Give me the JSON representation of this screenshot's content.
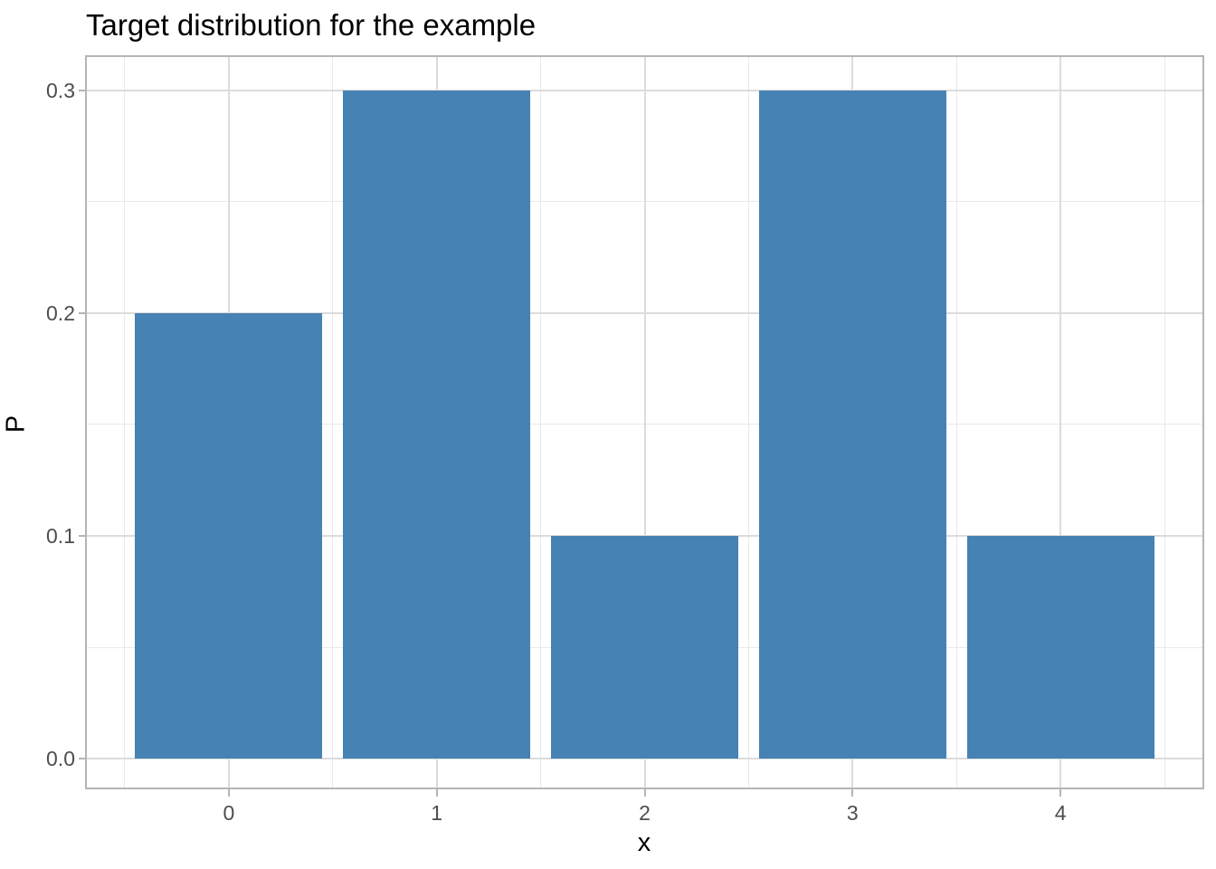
{
  "chart_data": {
    "type": "bar",
    "title": "Target distribution for the example",
    "xlabel": "x",
    "ylabel": "P",
    "categories": [
      0,
      1,
      2,
      3,
      4
    ],
    "values": [
      0.2,
      0.3,
      0.1,
      0.3,
      0.1
    ],
    "bar_width": 0.9,
    "x_tick_labels": [
      "0",
      "1",
      "2",
      "3",
      "4"
    ],
    "y_ticks": [
      0.0,
      0.1,
      0.2,
      0.3
    ],
    "y_tick_labels": [
      "0.0",
      "0.1",
      "0.2",
      "0.3"
    ],
    "x_minor_ticks": [
      -0.5,
      0.5,
      1.5,
      2.5,
      3.5,
      4.5
    ],
    "y_minor_ticks": [
      0.05,
      0.15,
      0.25
    ],
    "xlim": [
      -0.687,
      4.687
    ],
    "ylim": [
      -0.0134,
      0.3154
    ],
    "grid": true,
    "legend_position": "none",
    "colors": {
      "bar": "#4682B4",
      "grid_major": "#dcdcdc",
      "grid_minor": "#e9e9e9",
      "panel_border": "#b5b5b5",
      "tick_mark": "#b5b5b5",
      "tick_label": "#4d4d4d",
      "axis_title": "#000000",
      "title": "#000000",
      "panel_background": "#ffffff",
      "plot_background": "#ffffff"
    }
  }
}
